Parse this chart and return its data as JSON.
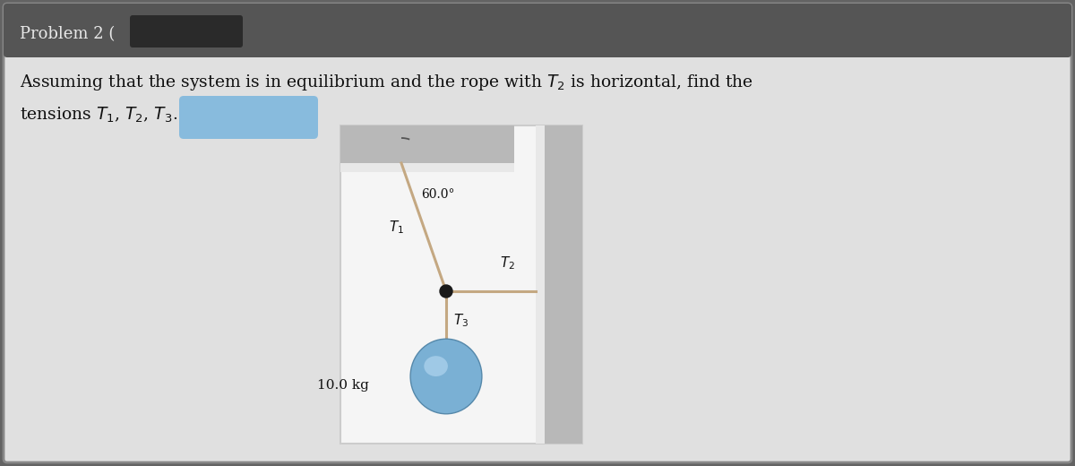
{
  "bg_outer": "#636363",
  "bg_inner": "#e0e0e0",
  "header_bg": "#555555",
  "header_text_color": "#e8e8e8",
  "body_text_color": "#111111",
  "rope_color": "#c4a882",
  "node_color": "#1a1a1a",
  "ball_color": "#7ab0d4",
  "ball_highlight": "#b0d4ee",
  "wall_light": "#e8e8e8",
  "wall_dark": "#b8b8b8",
  "diagram_bg": "#f5f5f5",
  "redact_header_color": "#333333",
  "redact_answer_color": "#88bbdd",
  "angle_label": "60.0°",
  "T1_label": "$T_1$",
  "T2_label": "$T_2$",
  "T3_label": "$T_3$",
  "mass_label": "10.0 kg",
  "header_fontsize": 13,
  "body_fontsize": 13.5
}
